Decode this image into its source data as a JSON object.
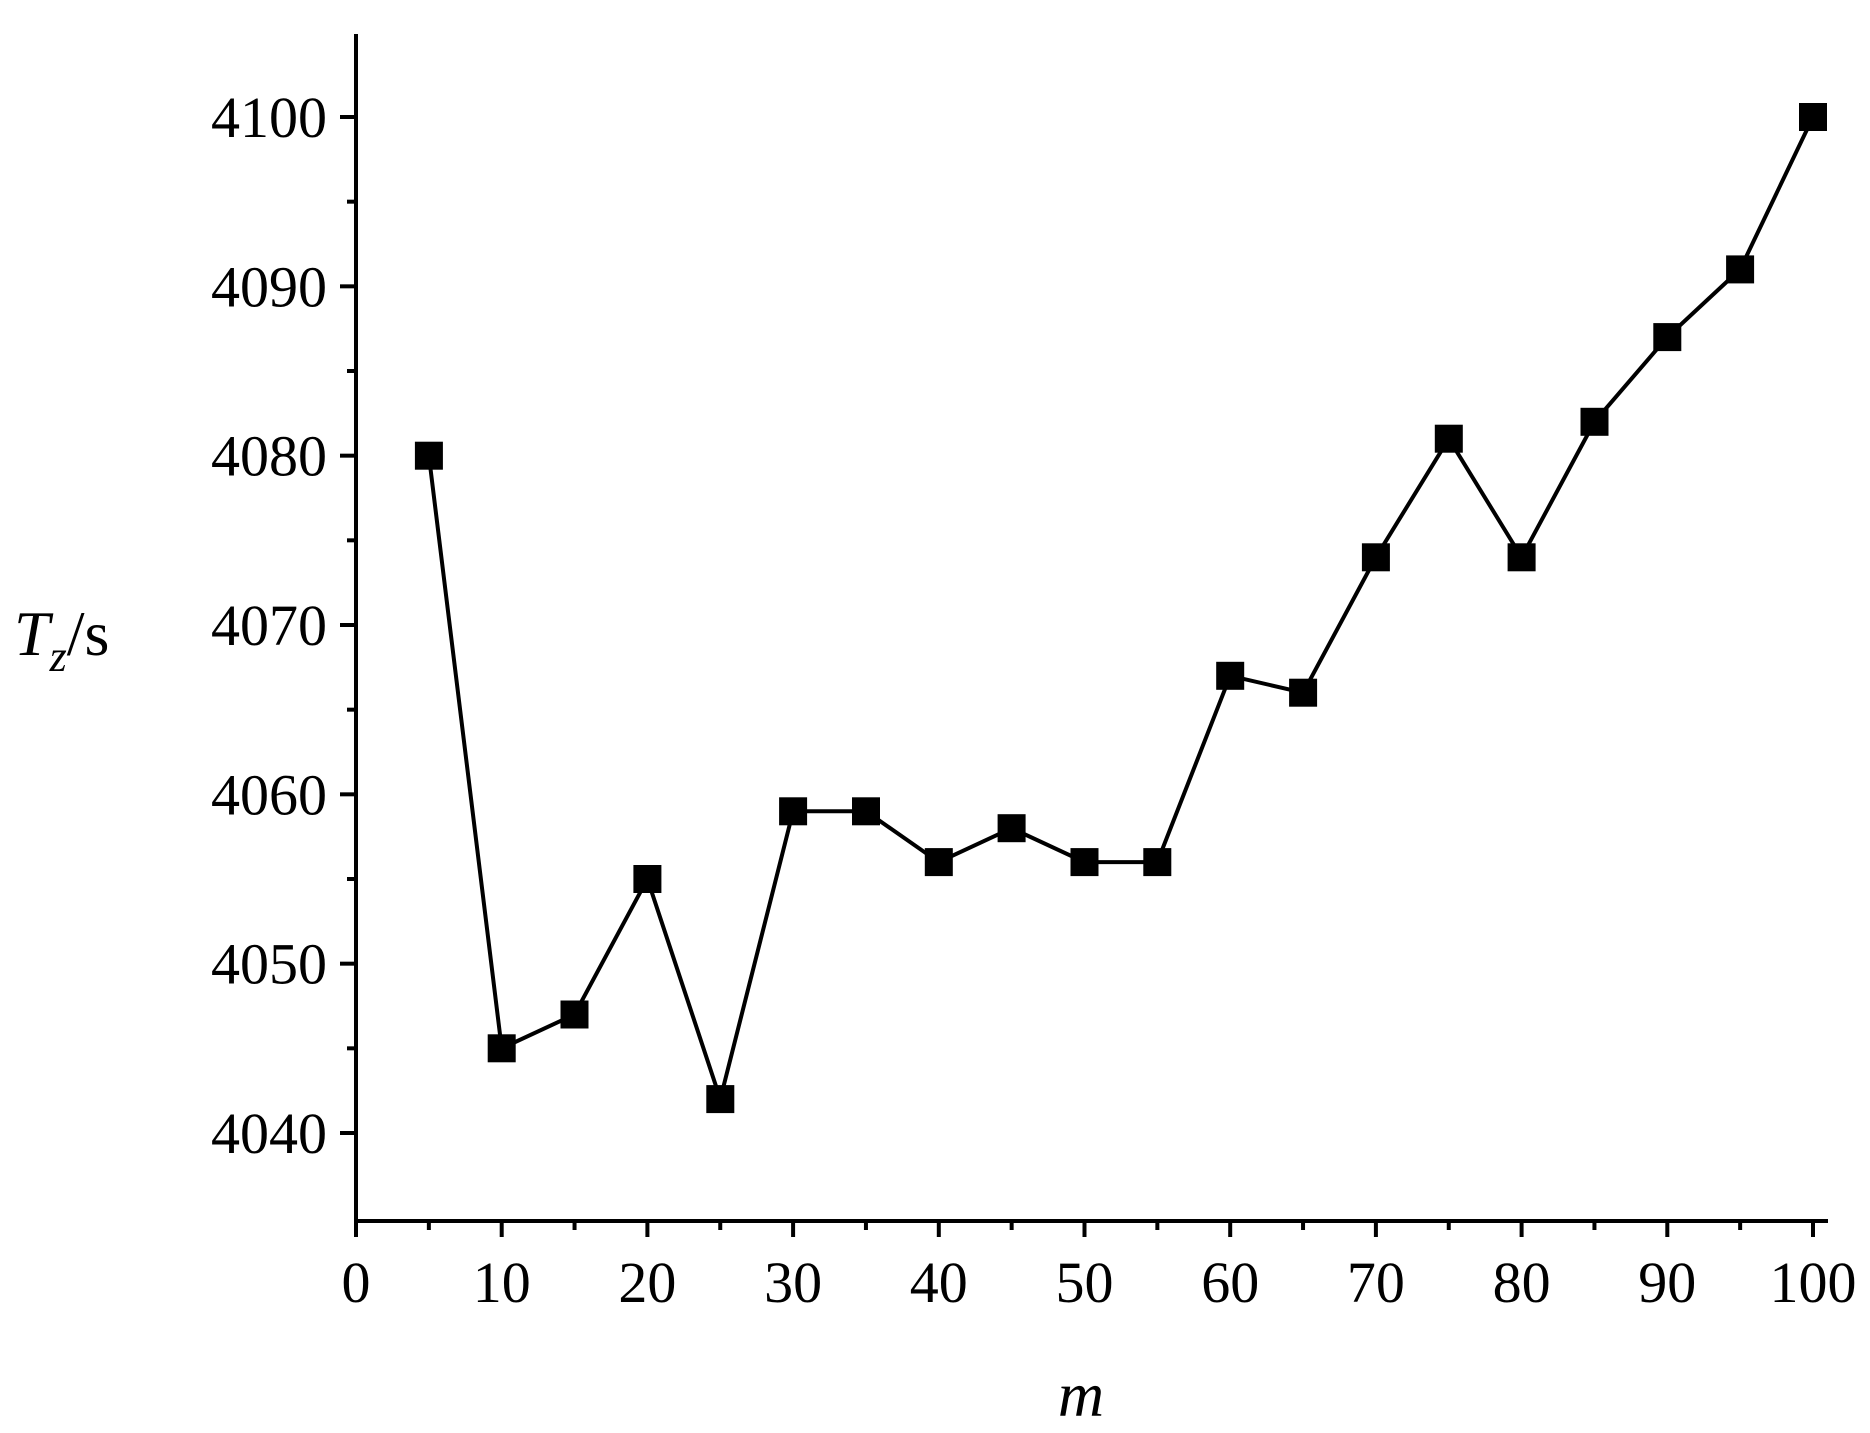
{
  "chart_data": {
    "type": "line",
    "title": "",
    "xlabel": "m",
    "ylabel": {
      "main": "T",
      "subscript": "z",
      "unit": "/s"
    },
    "xlim": [
      0,
      100
    ],
    "ylim": [
      4035,
      4105
    ],
    "x_ticks": [
      0,
      10,
      20,
      30,
      40,
      50,
      60,
      70,
      80,
      90,
      100
    ],
    "x_tick_labels": [
      "0",
      "10",
      "20",
      "30",
      "40",
      "50",
      "60",
      "70",
      "80",
      "90",
      "100"
    ],
    "x_minor_ticks": [
      5,
      15,
      25,
      35,
      45,
      55,
      65,
      75,
      85,
      95
    ],
    "y_ticks": [
      4040,
      4050,
      4060,
      4070,
      4080,
      4090,
      4100
    ],
    "y_tick_labels": [
      "4040",
      "4050",
      "4060",
      "4070",
      "4080",
      "4090",
      "4100"
    ],
    "y_minor_ticks": [
      4045,
      4055,
      4065,
      4075,
      4085,
      4095
    ],
    "grid": false,
    "legend": "none",
    "marker": "square",
    "color": "#000000",
    "series": [
      {
        "x": [
          5,
          10,
          15,
          20,
          25,
          30,
          35,
          40,
          45,
          50,
          55,
          60,
          65,
          70,
          75,
          80,
          85,
          90,
          95,
          100
        ],
        "values": [
          4080,
          4045,
          4047,
          4055,
          4042,
          4059,
          4059,
          4056,
          4058,
          4056,
          4056,
          4067,
          4066,
          4074,
          4081,
          4074,
          4082,
          4087,
          4091,
          4100
        ]
      }
    ]
  }
}
